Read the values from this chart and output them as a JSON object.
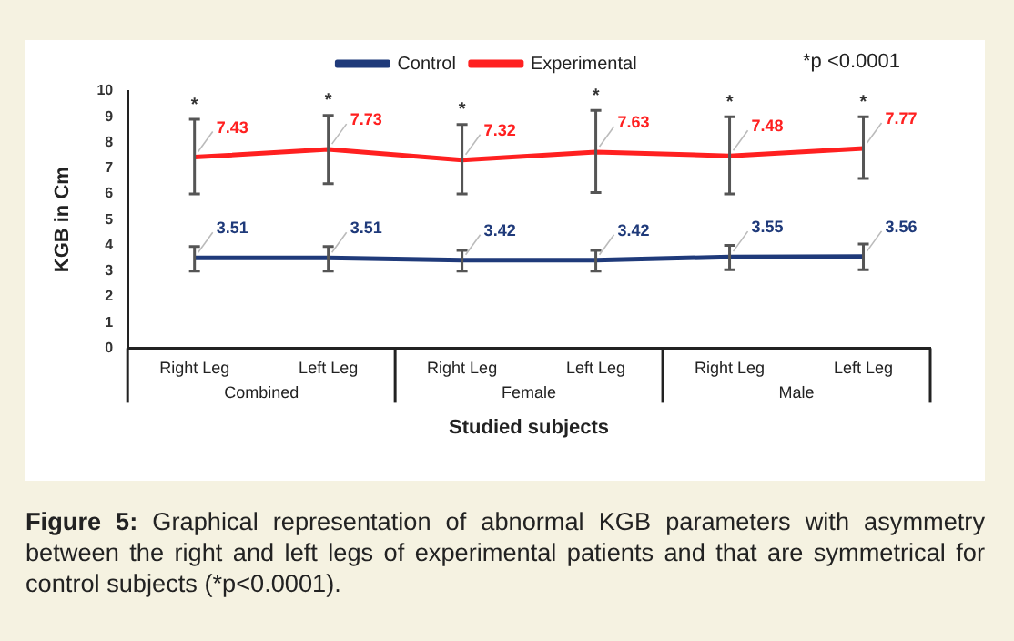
{
  "chart_data": {
    "type": "line",
    "ylabel": "KGB in Cm",
    "xlabel": "Studied subjects",
    "categories": [
      "Right Leg",
      "Left Leg",
      "Right Leg",
      "Left Leg",
      "Right Leg",
      "Left Leg"
    ],
    "series": [
      {
        "name": "Control",
        "color": "#1f3a7a",
        "values": [
          3.51,
          3.51,
          3.42,
          3.42,
          3.55,
          3.56
        ],
        "errors": [
          [
            3.0,
            3.95
          ],
          [
            3.0,
            3.95
          ],
          [
            3.0,
            3.8
          ],
          [
            3.0,
            3.8
          ],
          [
            3.05,
            4.0
          ],
          [
            3.05,
            4.05
          ]
        ]
      },
      {
        "name": "Experimental",
        "color": "#ff2020",
        "values": [
          7.43,
          7.73,
          7.32,
          7.63,
          7.48,
          7.77
        ],
        "errors": [
          [
            6.0,
            8.9
          ],
          [
            6.4,
            9.05
          ],
          [
            6.0,
            8.7
          ],
          [
            6.05,
            9.25
          ],
          [
            6.0,
            9.0
          ],
          [
            6.6,
            9.0
          ]
        ]
      }
    ],
    "ylim": [
      0,
      10
    ],
    "yticks": [
      0,
      1,
      2,
      3,
      4,
      5,
      6,
      7,
      8,
      9,
      10
    ],
    "grid": false,
    "legend": "top",
    "marker": "none",
    "line_style": "solid",
    "data_labels": true,
    "annotations": [
      "Combined",
      "Female",
      "Male",
      "*p <0.0001",
      "*",
      "*",
      "*",
      "*",
      "*",
      "*",
      "Figure 5: Graphical representation of abnormal KGB parameters with asymmetry between the right and left legs of experimental patients and that are symmetrical for control subjects (*p<0.0001)."
    ]
  }
}
